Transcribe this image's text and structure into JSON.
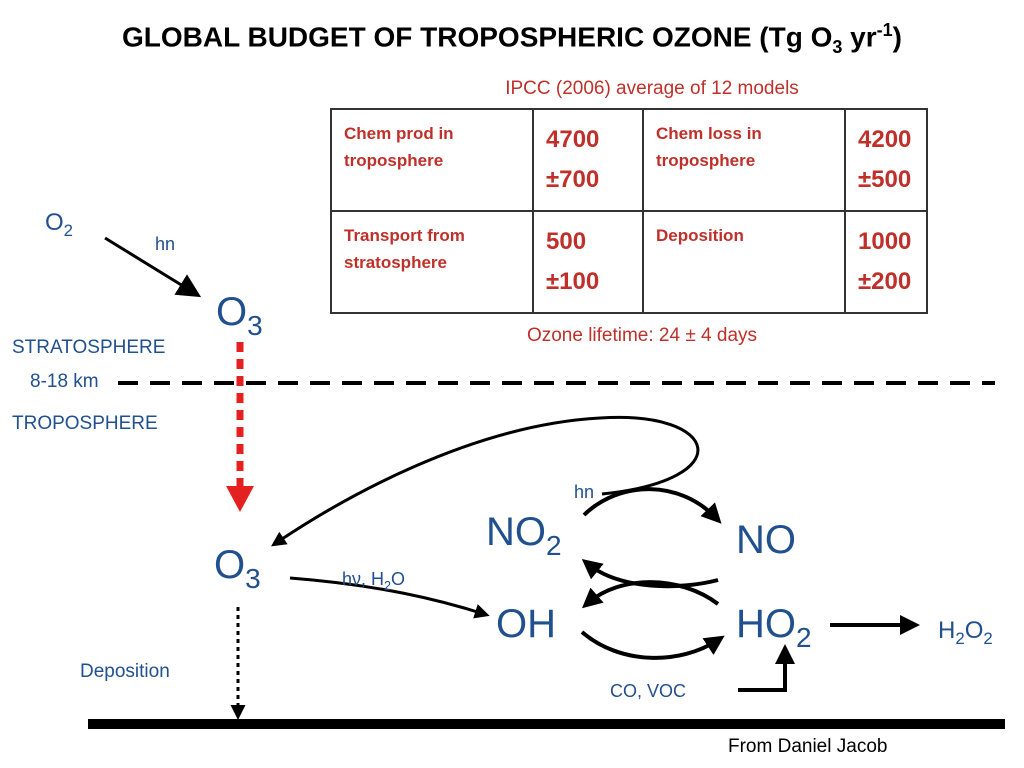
{
  "title": {
    "parts": [
      "GLOBAL BUDGET OF TROPOSPHERIC OZONE (Tg O",
      "3",
      " yr",
      "-1",
      ")"
    ]
  },
  "subtitle": "IPCC (2006) average of 12 models",
  "table": {
    "rows": [
      [
        "Chem prod in troposphere",
        "4700 ±700",
        "Chem loss in troposphere",
        "4200 ±500"
      ],
      [
        "Transport from stratosphere",
        "500 ±100",
        "Deposition",
        "1000 ±200"
      ]
    ]
  },
  "lifetime": "Ozone lifetime: 24 ± 4 days",
  "labels": {
    "o2": [
      "O",
      "2"
    ],
    "hn_top": "hn",
    "o3_top": [
      "O",
      "3"
    ],
    "stratosphere": "STRATOSPHERE",
    "altitude": "8-18 km",
    "troposphere": "TROPOSPHERE",
    "o3_bottom": [
      "O",
      "3"
    ],
    "photolysis": [
      "hν, H",
      "2",
      "O"
    ],
    "hn_no2": "hn",
    "no2": [
      "NO",
      "2"
    ],
    "no": "NO",
    "oh": "OH",
    "ho2": [
      "HO",
      "2"
    ],
    "h2o2": [
      "H",
      "2",
      "O",
      "2"
    ],
    "co_voc": "CO, VOC",
    "deposition": "Deposition"
  },
  "credit": "From Daniel Jacob"
}
